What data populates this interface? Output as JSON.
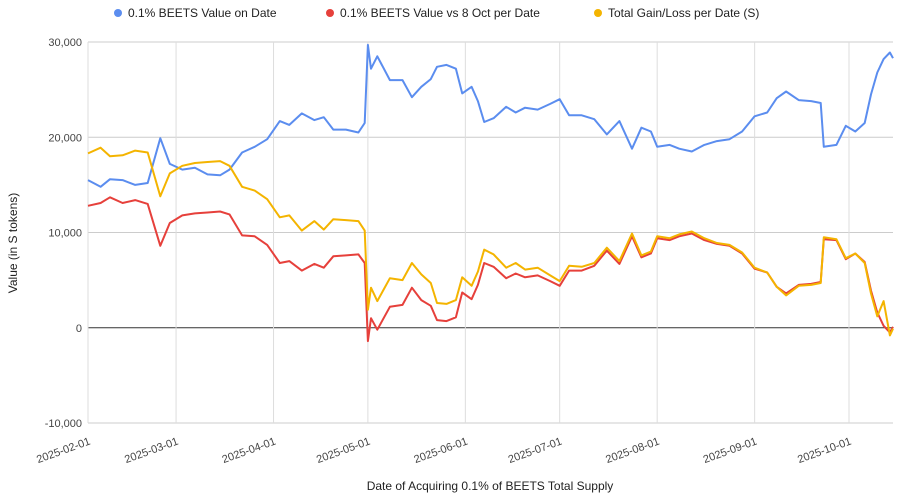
{
  "chart_data": {
    "type": "line",
    "xlabel": "Date of Acquiring 0.1% of BEETS Total Supply",
    "ylabel": "Value (in S tokens)",
    "xlim": [
      "2025-02-01",
      "2025-10-15"
    ],
    "ylim": [
      -10000,
      30000
    ],
    "y_ticks": [
      -10000,
      0,
      10000,
      20000,
      30000
    ],
    "y_tick_labels": [
      "-10,000",
      "0",
      "10,000",
      "20,000",
      "30,000"
    ],
    "x_ticks": [
      "2025-02-01",
      "2025-03-01",
      "2025-04-01",
      "2025-05-01",
      "2025-06-01",
      "2025-07-01",
      "2025-08-01",
      "2025-09-01",
      "2025-10-01"
    ],
    "grid": true,
    "legend_position": "top",
    "series": [
      {
        "name": "0.1% BEETS Value on Date",
        "color": "#5b8def",
        "points": [
          [
            "2025-02-01",
            15500
          ],
          [
            "2025-02-05",
            14800
          ],
          [
            "2025-02-08",
            15600
          ],
          [
            "2025-02-12",
            15500
          ],
          [
            "2025-02-16",
            15000
          ],
          [
            "2025-02-20",
            15200
          ],
          [
            "2025-02-24",
            19900
          ],
          [
            "2025-02-27",
            17200
          ],
          [
            "2025-03-03",
            16600
          ],
          [
            "2025-03-07",
            16800
          ],
          [
            "2025-03-11",
            16100
          ],
          [
            "2025-03-15",
            16000
          ],
          [
            "2025-03-18",
            16600
          ],
          [
            "2025-03-22",
            18400
          ],
          [
            "2025-03-26",
            19000
          ],
          [
            "2025-03-30",
            19800
          ],
          [
            "2025-04-03",
            21700
          ],
          [
            "2025-04-06",
            21300
          ],
          [
            "2025-04-10",
            22500
          ],
          [
            "2025-04-14",
            21800
          ],
          [
            "2025-04-17",
            22100
          ],
          [
            "2025-04-20",
            20800
          ],
          [
            "2025-04-24",
            20800
          ],
          [
            "2025-04-28",
            20500
          ],
          [
            "2025-04-30",
            21500
          ],
          [
            "2025-05-01",
            29700
          ],
          [
            "2025-05-02",
            27200
          ],
          [
            "2025-05-04",
            28500
          ],
          [
            "2025-05-08",
            26000
          ],
          [
            "2025-05-12",
            26000
          ],
          [
            "2025-05-15",
            24200
          ],
          [
            "2025-05-18",
            25300
          ],
          [
            "2025-05-21",
            26100
          ],
          [
            "2025-05-23",
            27400
          ],
          [
            "2025-05-26",
            27600
          ],
          [
            "2025-05-29",
            27200
          ],
          [
            "2025-05-31",
            24600
          ],
          [
            "2025-06-03",
            25300
          ],
          [
            "2025-06-05",
            23800
          ],
          [
            "2025-06-07",
            21600
          ],
          [
            "2025-06-10",
            22000
          ],
          [
            "2025-06-14",
            23200
          ],
          [
            "2025-06-17",
            22600
          ],
          [
            "2025-06-20",
            23100
          ],
          [
            "2025-06-24",
            22900
          ],
          [
            "2025-06-28",
            23500
          ],
          [
            "2025-07-01",
            24000
          ],
          [
            "2025-07-04",
            22300
          ],
          [
            "2025-07-08",
            22300
          ],
          [
            "2025-07-12",
            21900
          ],
          [
            "2025-07-16",
            20300
          ],
          [
            "2025-07-20",
            21700
          ],
          [
            "2025-07-24",
            18800
          ],
          [
            "2025-07-27",
            21000
          ],
          [
            "2025-07-30",
            20600
          ],
          [
            "2025-08-01",
            19000
          ],
          [
            "2025-08-05",
            19200
          ],
          [
            "2025-08-08",
            18800
          ],
          [
            "2025-08-12",
            18500
          ],
          [
            "2025-08-16",
            19200
          ],
          [
            "2025-08-20",
            19600
          ],
          [
            "2025-08-24",
            19800
          ],
          [
            "2025-08-28",
            20600
          ],
          [
            "2025-09-01",
            22200
          ],
          [
            "2025-09-05",
            22600
          ],
          [
            "2025-09-08",
            24100
          ],
          [
            "2025-09-11",
            24800
          ],
          [
            "2025-09-15",
            23900
          ],
          [
            "2025-09-19",
            23800
          ],
          [
            "2025-09-22",
            23600
          ],
          [
            "2025-09-23",
            19000
          ],
          [
            "2025-09-27",
            19200
          ],
          [
            "2025-09-30",
            21200
          ],
          [
            "2025-10-03",
            20600
          ],
          [
            "2025-10-06",
            21500
          ],
          [
            "2025-10-08",
            24500
          ],
          [
            "2025-10-10",
            26800
          ],
          [
            "2025-10-12",
            28200
          ],
          [
            "2025-10-14",
            28900
          ],
          [
            "2025-10-15",
            28300
          ]
        ]
      },
      {
        "name": "0.1% BEETS Value vs 8 Oct per Date",
        "color": "#e6403b",
        "points": [
          [
            "2025-02-01",
            12800
          ],
          [
            "2025-02-05",
            13100
          ],
          [
            "2025-02-08",
            13700
          ],
          [
            "2025-02-12",
            13100
          ],
          [
            "2025-02-16",
            13400
          ],
          [
            "2025-02-20",
            13000
          ],
          [
            "2025-02-24",
            8600
          ],
          [
            "2025-02-27",
            11000
          ],
          [
            "2025-03-03",
            11800
          ],
          [
            "2025-03-07",
            12000
          ],
          [
            "2025-03-11",
            12100
          ],
          [
            "2025-03-15",
            12200
          ],
          [
            "2025-03-18",
            11900
          ],
          [
            "2025-03-22",
            9700
          ],
          [
            "2025-03-26",
            9600
          ],
          [
            "2025-03-30",
            8700
          ],
          [
            "2025-04-03",
            6800
          ],
          [
            "2025-04-06",
            7000
          ],
          [
            "2025-04-10",
            6000
          ],
          [
            "2025-04-14",
            6700
          ],
          [
            "2025-04-17",
            6300
          ],
          [
            "2025-04-20",
            7500
          ],
          [
            "2025-04-24",
            7600
          ],
          [
            "2025-04-28",
            7700
          ],
          [
            "2025-04-30",
            6800
          ],
          [
            "2025-05-01",
            -1400
          ],
          [
            "2025-05-02",
            1000
          ],
          [
            "2025-05-04",
            -200
          ],
          [
            "2025-05-08",
            2200
          ],
          [
            "2025-05-12",
            2400
          ],
          [
            "2025-05-15",
            4200
          ],
          [
            "2025-05-18",
            2900
          ],
          [
            "2025-05-21",
            2300
          ],
          [
            "2025-05-23",
            800
          ],
          [
            "2025-05-26",
            700
          ],
          [
            "2025-05-29",
            1100
          ],
          [
            "2025-05-31",
            3700
          ],
          [
            "2025-06-03",
            3000
          ],
          [
            "2025-06-05",
            4500
          ],
          [
            "2025-06-07",
            6800
          ],
          [
            "2025-06-10",
            6400
          ],
          [
            "2025-06-14",
            5200
          ],
          [
            "2025-06-17",
            5700
          ],
          [
            "2025-06-20",
            5300
          ],
          [
            "2025-06-24",
            5500
          ],
          [
            "2025-06-28",
            4900
          ],
          [
            "2025-07-01",
            4400
          ],
          [
            "2025-07-04",
            6000
          ],
          [
            "2025-07-08",
            6000
          ],
          [
            "2025-07-12",
            6500
          ],
          [
            "2025-07-16",
            8100
          ],
          [
            "2025-07-20",
            6700
          ],
          [
            "2025-07-24",
            9600
          ],
          [
            "2025-07-27",
            7400
          ],
          [
            "2025-07-30",
            7800
          ],
          [
            "2025-08-01",
            9400
          ],
          [
            "2025-08-05",
            9200
          ],
          [
            "2025-08-08",
            9600
          ],
          [
            "2025-08-12",
            9900
          ],
          [
            "2025-08-16",
            9200
          ],
          [
            "2025-08-20",
            8800
          ],
          [
            "2025-08-24",
            8600
          ],
          [
            "2025-08-28",
            7800
          ],
          [
            "2025-09-01",
            6200
          ],
          [
            "2025-09-05",
            5800
          ],
          [
            "2025-09-08",
            4300
          ],
          [
            "2025-09-11",
            3600
          ],
          [
            "2025-09-15",
            4500
          ],
          [
            "2025-09-19",
            4600
          ],
          [
            "2025-09-22",
            4800
          ],
          [
            "2025-09-23",
            9300
          ],
          [
            "2025-09-27",
            9200
          ],
          [
            "2025-09-30",
            7200
          ],
          [
            "2025-10-03",
            7800
          ],
          [
            "2025-10-06",
            6900
          ],
          [
            "2025-10-08",
            3900
          ],
          [
            "2025-10-10",
            1600
          ],
          [
            "2025-10-12",
            200
          ],
          [
            "2025-10-14",
            -500
          ],
          [
            "2025-10-15",
            100
          ]
        ]
      },
      {
        "name": "Total Gain/Loss per Date (S)",
        "color": "#f4b400",
        "points": [
          [
            "2025-02-01",
            18300
          ],
          [
            "2025-02-05",
            18900
          ],
          [
            "2025-02-08",
            18000
          ],
          [
            "2025-02-12",
            18100
          ],
          [
            "2025-02-16",
            18600
          ],
          [
            "2025-02-20",
            18400
          ],
          [
            "2025-02-24",
            13800
          ],
          [
            "2025-02-27",
            16200
          ],
          [
            "2025-03-03",
            17000
          ],
          [
            "2025-03-07",
            17300
          ],
          [
            "2025-03-11",
            17400
          ],
          [
            "2025-03-15",
            17500
          ],
          [
            "2025-03-18",
            17000
          ],
          [
            "2025-03-22",
            14800
          ],
          [
            "2025-03-26",
            14400
          ],
          [
            "2025-03-30",
            13500
          ],
          [
            "2025-04-03",
            11600
          ],
          [
            "2025-04-06",
            11800
          ],
          [
            "2025-04-10",
            10200
          ],
          [
            "2025-04-14",
            11200
          ],
          [
            "2025-04-17",
            10300
          ],
          [
            "2025-04-20",
            11400
          ],
          [
            "2025-04-24",
            11300
          ],
          [
            "2025-04-28",
            11200
          ],
          [
            "2025-04-30",
            10200
          ],
          [
            "2025-05-01",
            1900
          ],
          [
            "2025-05-02",
            4200
          ],
          [
            "2025-05-04",
            2800
          ],
          [
            "2025-05-08",
            5200
          ],
          [
            "2025-05-12",
            5000
          ],
          [
            "2025-05-15",
            6800
          ],
          [
            "2025-05-18",
            5600
          ],
          [
            "2025-05-21",
            4700
          ],
          [
            "2025-05-23",
            2600
          ],
          [
            "2025-05-26",
            2500
          ],
          [
            "2025-05-29",
            2900
          ],
          [
            "2025-05-31",
            5300
          ],
          [
            "2025-06-03",
            4400
          ],
          [
            "2025-06-05",
            5900
          ],
          [
            "2025-06-07",
            8200
          ],
          [
            "2025-06-10",
            7700
          ],
          [
            "2025-06-14",
            6300
          ],
          [
            "2025-06-17",
            6800
          ],
          [
            "2025-06-20",
            6100
          ],
          [
            "2025-06-24",
            6300
          ],
          [
            "2025-06-28",
            5500
          ],
          [
            "2025-07-01",
            4900
          ],
          [
            "2025-07-04",
            6500
          ],
          [
            "2025-07-08",
            6400
          ],
          [
            "2025-07-12",
            6800
          ],
          [
            "2025-07-16",
            8400
          ],
          [
            "2025-07-20",
            7000
          ],
          [
            "2025-07-24",
            9900
          ],
          [
            "2025-07-27",
            7600
          ],
          [
            "2025-07-30",
            8000
          ],
          [
            "2025-08-01",
            9600
          ],
          [
            "2025-08-05",
            9400
          ],
          [
            "2025-08-08",
            9800
          ],
          [
            "2025-08-12",
            10100
          ],
          [
            "2025-08-16",
            9400
          ],
          [
            "2025-08-20",
            8900
          ],
          [
            "2025-08-24",
            8700
          ],
          [
            "2025-08-28",
            7900
          ],
          [
            "2025-09-01",
            6300
          ],
          [
            "2025-09-05",
            5800
          ],
          [
            "2025-09-08",
            4300
          ],
          [
            "2025-09-11",
            3400
          ],
          [
            "2025-09-15",
            4400
          ],
          [
            "2025-09-19",
            4500
          ],
          [
            "2025-09-22",
            4700
          ],
          [
            "2025-09-23",
            9500
          ],
          [
            "2025-09-27",
            9300
          ],
          [
            "2025-09-30",
            7300
          ],
          [
            "2025-10-03",
            7800
          ],
          [
            "2025-10-06",
            6800
          ],
          [
            "2025-10-08",
            3600
          ],
          [
            "2025-10-10",
            1200
          ],
          [
            "2025-10-12",
            2800
          ],
          [
            "2025-10-14",
            -800
          ],
          [
            "2025-10-15",
            -100
          ]
        ]
      }
    ]
  }
}
